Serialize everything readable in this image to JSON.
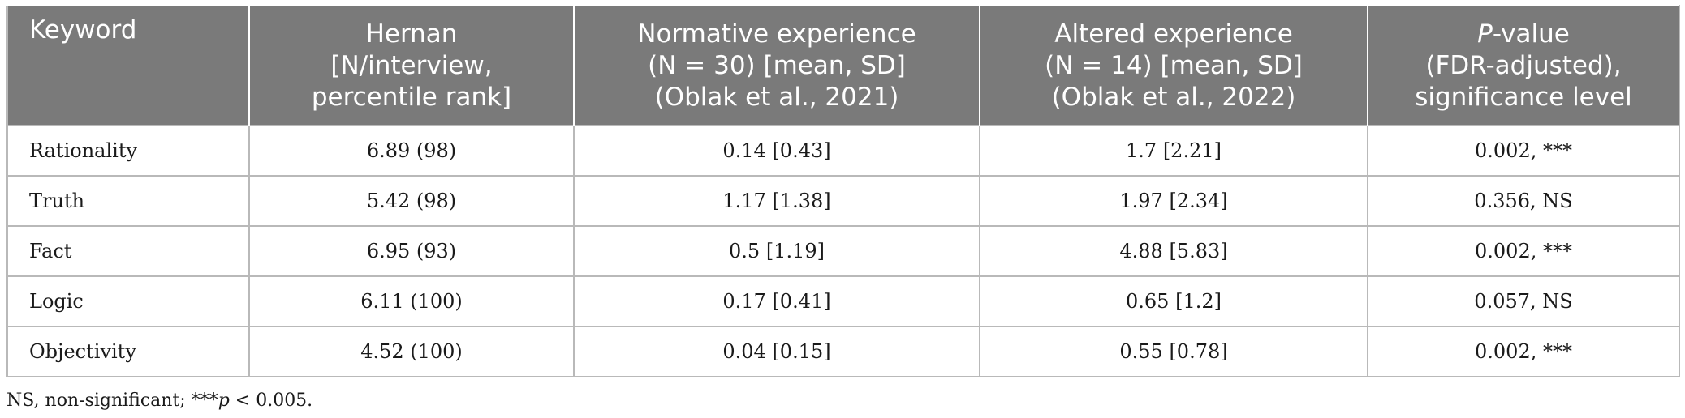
{
  "table": {
    "headers": [
      [
        "Keyword"
      ],
      [
        "Hernan",
        "[N/interview,",
        "percentile rank]"
      ],
      [
        "Normative experience",
        "(N = 30) [mean, SD]",
        "(Oblak et al., 2021)"
      ],
      [
        "Altered experience",
        "(N = 14) [mean, SD]",
        "(Oblak et al., 2022)"
      ],
      [
        "P-value",
        "(FDR-adjusted),",
        "significance level"
      ]
    ],
    "rows": [
      [
        "Rationality",
        "6.89 (98)",
        "0.14 [0.43]",
        "1.7 [2.21]",
        "0.002, ***"
      ],
      [
        "Truth",
        "5.42 (98)",
        "1.17 [1.38]",
        "1.97 [2.34]",
        "0.356, NS"
      ],
      [
        "Fact",
        "6.95 (93)",
        "0.5 [1.19]",
        "4.88 [5.83]",
        "0.002, ***"
      ],
      [
        "Logic",
        "6.11 (100)",
        "0.17 [0.41]",
        "0.65 [1.2]",
        "0.057, NS"
      ],
      [
        "Objectivity",
        "4.52 (100)",
        "0.04 [0.15]",
        "0.55 [0.78]",
        "0.002, ***"
      ]
    ]
  },
  "footnote": "NS, non-significant; ***p < 0.005."
}
